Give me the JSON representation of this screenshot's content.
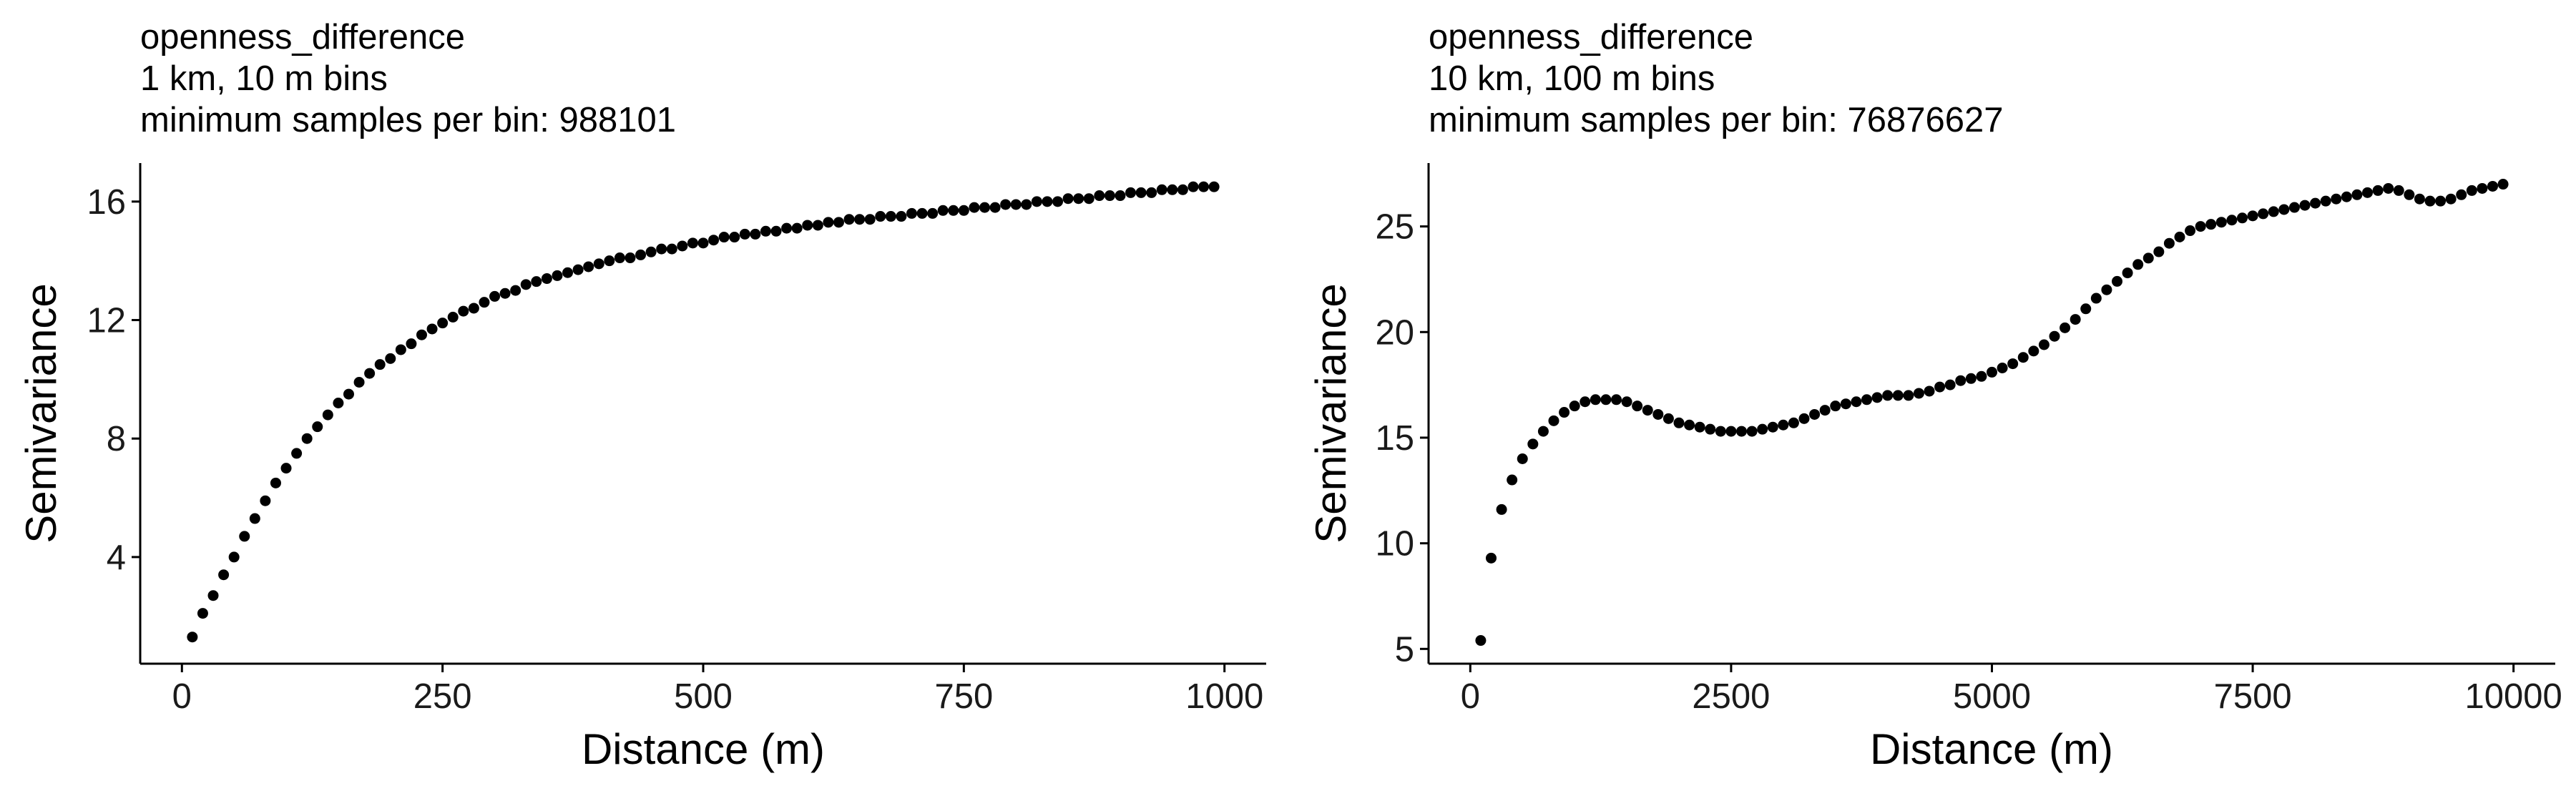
{
  "chart_data": [
    {
      "type": "scatter",
      "title": "openness_difference",
      "subtitle": [
        "1 km, 10 m bins",
        "minimum samples per bin: 988101"
      ],
      "xlabel": "Distance (m)",
      "ylabel": "Semivariance",
      "xlim": [
        -40,
        1040
      ],
      "ylim": [
        0.4,
        17.3
      ],
      "xticks": [
        0,
        250,
        500,
        750,
        1000
      ],
      "yticks": [
        4,
        8,
        12,
        16
      ],
      "grid": false,
      "legend": "none",
      "point_color": "#000000",
      "series": [
        {
          "x": [
            10,
            20,
            30,
            40,
            50,
            60,
            70,
            80,
            90,
            100,
            110,
            120,
            130,
            140,
            150,
            160,
            170,
            180,
            190,
            200,
            210,
            220,
            230,
            240,
            250,
            260,
            270,
            280,
            290,
            300,
            310,
            320,
            330,
            340,
            350,
            360,
            370,
            380,
            390,
            400,
            410,
            420,
            430,
            440,
            450,
            460,
            470,
            480,
            490,
            500,
            510,
            520,
            530,
            540,
            550,
            560,
            570,
            580,
            590,
            600,
            610,
            620,
            630,
            640,
            650,
            660,
            670,
            680,
            690,
            700,
            710,
            720,
            730,
            740,
            750,
            760,
            770,
            780,
            790,
            800,
            810,
            820,
            830,
            840,
            850,
            860,
            870,
            880,
            890,
            900,
            910,
            920,
            930,
            940,
            950,
            960,
            970,
            980,
            990
          ],
          "y": [
            1.3,
            2.1,
            2.7,
            3.4,
            4.0,
            4.7,
            5.3,
            5.9,
            6.5,
            7.0,
            7.5,
            8.0,
            8.4,
            8.8,
            9.2,
            9.5,
            9.9,
            10.2,
            10.5,
            10.7,
            11.0,
            11.2,
            11.5,
            11.7,
            11.9,
            12.1,
            12.3,
            12.4,
            12.6,
            12.8,
            12.9,
            13.0,
            13.2,
            13.3,
            13.4,
            13.5,
            13.6,
            13.7,
            13.8,
            13.9,
            14.0,
            14.1,
            14.1,
            14.2,
            14.3,
            14.4,
            14.4,
            14.5,
            14.6,
            14.6,
            14.7,
            14.8,
            14.8,
            14.9,
            14.9,
            15.0,
            15.0,
            15.1,
            15.1,
            15.2,
            15.2,
            15.3,
            15.3,
            15.4,
            15.4,
            15.4,
            15.5,
            15.5,
            15.5,
            15.6,
            15.6,
            15.6,
            15.7,
            15.7,
            15.7,
            15.8,
            15.8,
            15.8,
            15.9,
            15.9,
            15.9,
            16.0,
            16.0,
            16.0,
            16.1,
            16.1,
            16.1,
            16.2,
            16.2,
            16.2,
            16.3,
            16.3,
            16.3,
            16.4,
            16.4,
            16.4,
            16.5,
            16.5,
            16.5
          ]
        }
      ]
    },
    {
      "type": "scatter",
      "title": "openness_difference",
      "subtitle": [
        "10 km, 100 m bins",
        "minimum samples per bin: 76876627"
      ],
      "xlabel": "Distance (m)",
      "ylabel": "Semivariance",
      "xlim": [
        -400,
        10400
      ],
      "ylim": [
        4.3,
        28.0
      ],
      "xticks": [
        0,
        2500,
        5000,
        7500,
        10000
      ],
      "yticks": [
        5,
        10,
        15,
        20,
        25
      ],
      "grid": false,
      "legend": "none",
      "point_color": "#000000",
      "series": [
        {
          "x": [
            100,
            200,
            300,
            400,
            500,
            600,
            700,
            800,
            900,
            1000,
            1100,
            1200,
            1300,
            1400,
            1500,
            1600,
            1700,
            1800,
            1900,
            2000,
            2100,
            2200,
            2300,
            2400,
            2500,
            2600,
            2700,
            2800,
            2900,
            3000,
            3100,
            3200,
            3300,
            3400,
            3500,
            3600,
            3700,
            3800,
            3900,
            4000,
            4100,
            4200,
            4300,
            4400,
            4500,
            4600,
            4700,
            4800,
            4900,
            5000,
            5100,
            5200,
            5300,
            5400,
            5500,
            5600,
            5700,
            5800,
            5900,
            6000,
            6100,
            6200,
            6300,
            6400,
            6500,
            6600,
            6700,
            6800,
            6900,
            7000,
            7100,
            7200,
            7300,
            7400,
            7500,
            7600,
            7700,
            7800,
            7900,
            8000,
            8100,
            8200,
            8300,
            8400,
            8500,
            8600,
            8700,
            8800,
            8900,
            9000,
            9100,
            9200,
            9300,
            9400,
            9500,
            9600,
            9700,
            9800,
            9900
          ],
          "y": [
            5.4,
            9.3,
            11.6,
            13.0,
            14.0,
            14.7,
            15.3,
            15.8,
            16.2,
            16.5,
            16.7,
            16.8,
            16.8,
            16.8,
            16.7,
            16.5,
            16.3,
            16.1,
            15.9,
            15.7,
            15.6,
            15.5,
            15.4,
            15.3,
            15.3,
            15.3,
            15.3,
            15.4,
            15.5,
            15.6,
            15.7,
            15.9,
            16.1,
            16.3,
            16.5,
            16.6,
            16.7,
            16.8,
            16.9,
            17.0,
            17.0,
            17.0,
            17.1,
            17.2,
            17.4,
            17.5,
            17.7,
            17.8,
            17.9,
            18.1,
            18.3,
            18.5,
            18.8,
            19.1,
            19.4,
            19.8,
            20.2,
            20.6,
            21.1,
            21.6,
            22.0,
            22.4,
            22.8,
            23.2,
            23.5,
            23.8,
            24.2,
            24.5,
            24.8,
            25.0,
            25.1,
            25.2,
            25.3,
            25.4,
            25.5,
            25.6,
            25.7,
            25.8,
            25.9,
            26.0,
            26.1,
            26.2,
            26.3,
            26.4,
            26.5,
            26.6,
            26.7,
            26.8,
            26.7,
            26.5,
            26.3,
            26.2,
            26.2,
            26.3,
            26.5,
            26.7,
            26.8,
            26.9,
            27.0
          ]
        }
      ]
    }
  ]
}
